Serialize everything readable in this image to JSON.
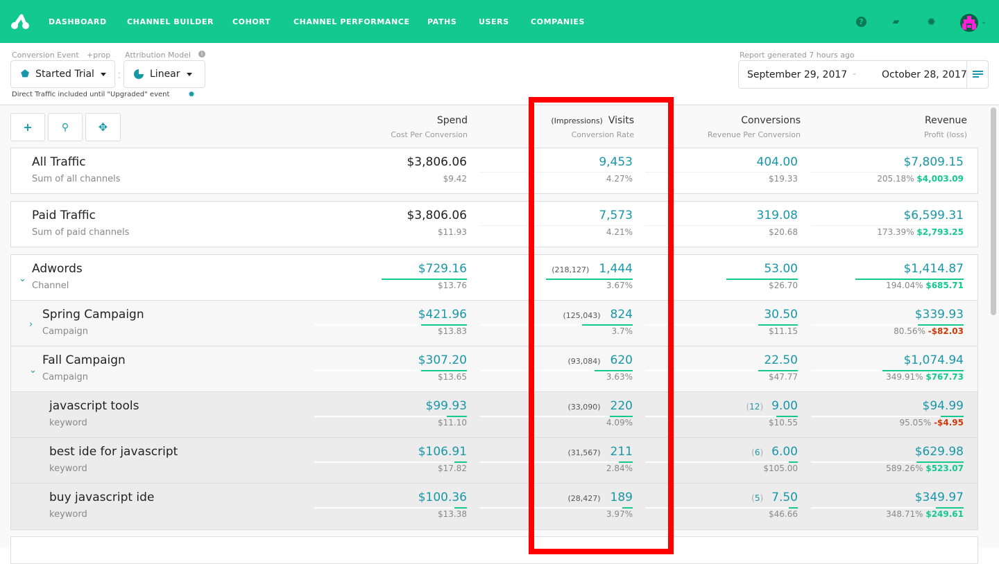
{
  "nav": {
    "items": [
      "DASHBOARD",
      "CHANNEL BUILDER",
      "COHORT",
      "CHANNEL PERFORMANCE",
      "PATHS",
      "USERS",
      "COMPANIES"
    ],
    "icons": [
      "help-icon",
      "chat-icon",
      "gear-icon"
    ]
  },
  "controls": {
    "conversion_event_label": "Conversion Event",
    "prop_link": "+prop",
    "conversion_event_value": "Started Trial",
    "attribution_label": "Attribution Model",
    "attribution_value": "Linear",
    "direct_note": "Direct Traffic included until \"Upgraded\" event",
    "report_generated": "Report generated 7 hours ago",
    "date_start": "September 29, 2017",
    "date_end": "October 28, 2017",
    "date_sep": "-"
  },
  "toolbar": {
    "add": "+",
    "search": "⚲",
    "move": "✥"
  },
  "columns": [
    {
      "title": "Spend",
      "sub": "Cost Per Conversion"
    },
    {
      "title": "Visits",
      "prefix": "(Impressions)",
      "sub": "Conversion Rate"
    },
    {
      "title": "Conversions",
      "sub": "Revenue Per Conversion"
    },
    {
      "title": "Revenue",
      "sub": "Profit (loss)"
    }
  ],
  "colors": {
    "brand": "#13c98e",
    "accent": "#1897a8",
    "loss": "#cc3a0a"
  },
  "rows": [
    {
      "name": "All Traffic",
      "type": "Sum of all channels",
      "level": "total",
      "spend": "$3,806.06",
      "cpc": "$9.42",
      "visits": "9,453",
      "cr": "4.27%",
      "conv": "404.00",
      "rpc": "$19.33",
      "rev": "$7,809.15",
      "roi": "205.18%",
      "profit": "$4,003.09",
      "profit_sign": "pos"
    },
    {
      "name": "Paid Traffic",
      "type": "Sum of paid channels",
      "level": "total",
      "spend": "$3,806.06",
      "cpc": "$11.93",
      "visits": "7,573",
      "cr": "4.21%",
      "conv": "319.08",
      "rpc": "$20.68",
      "rev": "$6,599.31",
      "roi": "173.39%",
      "profit": "$2,793.25",
      "profit_sign": "pos"
    },
    {
      "name": "Adwords",
      "type": "Channel",
      "level": "channel",
      "expanded": true,
      "spend": "$729.16",
      "cpc": "$13.76",
      "impressions": "(218,127)",
      "visits": "1,444",
      "cr": "3.67%",
      "conv": "53.00",
      "rpc": "$26.70",
      "rev": "$1,414.87",
      "roi": "194.04%",
      "profit": "$685.71",
      "profit_sign": "pos",
      "bars": [
        0.56,
        0.57,
        0.47,
        0.71
      ]
    },
    {
      "name": "Spring Campaign",
      "type": "Campaign",
      "level": "campaign",
      "expanded": false,
      "spend": "$421.96",
      "cpc": "$13.83",
      "impressions": "(125,043)",
      "visits": "824",
      "cr": "3.7%",
      "conv": "30.50",
      "rpc": "$11.15",
      "rev": "$339.93",
      "roi": "80.56%",
      "profit": "-$82.03",
      "profit_sign": "neg",
      "bars": [
        0.3,
        0.33,
        0.26,
        0.3
      ]
    },
    {
      "name": "Fall Campaign",
      "type": "Campaign",
      "level": "campaign",
      "expanded": true,
      "spend": "$307.20",
      "cpc": "$13.65",
      "impressions": "(93,084)",
      "visits": "620",
      "cr": "3.63%",
      "conv": "22.50",
      "rpc": "$47.77",
      "rev": "$1,074.94",
      "roi": "349.91%",
      "profit": "$767.73",
      "profit_sign": "pos",
      "bars": [
        0.3,
        0.25,
        0.26,
        0.53
      ]
    },
    {
      "name": "javascript tools",
      "type": "keyword",
      "level": "keyword",
      "spend": "$99.93",
      "cpc": "$11.10",
      "impressions": "(33,090)",
      "visits": "220",
      "cr": "4.09%",
      "count": "12",
      "conv": "9.00",
      "rpc": "$10.55",
      "rev": "$94.99",
      "roi": "95.05%",
      "profit": "-$4.95",
      "profit_sign": "neg",
      "bars": [
        0.13,
        0.15,
        0.14,
        0.15
      ]
    },
    {
      "name": "best ide for javascript",
      "type": "keyword",
      "level": "keyword",
      "spend": "$106.91",
      "cpc": "$17.82",
      "impressions": "(31,567)",
      "visits": "211",
      "cr": "2.84%",
      "count": "6",
      "conv": "6.00",
      "rpc": "$105.00",
      "rev": "$629.98",
      "roi": "589.26%",
      "profit": "$523.07",
      "profit_sign": "pos",
      "bars": [
        0.08,
        0.09,
        0.06,
        0.31
      ]
    },
    {
      "name": "buy javascript ide",
      "type": "keyword",
      "level": "keyword",
      "spend": "$100.36",
      "cpc": "$13.38",
      "impressions": "(28,427)",
      "visits": "189",
      "cr": "3.97%",
      "count": "5",
      "conv": "7.50",
      "rpc": "$46.66",
      "rev": "$349.97",
      "roi": "348.71%",
      "profit": "$249.61",
      "profit_sign": "pos",
      "bars": [
        0.08,
        0.07,
        0.06,
        0.18
      ]
    }
  ]
}
